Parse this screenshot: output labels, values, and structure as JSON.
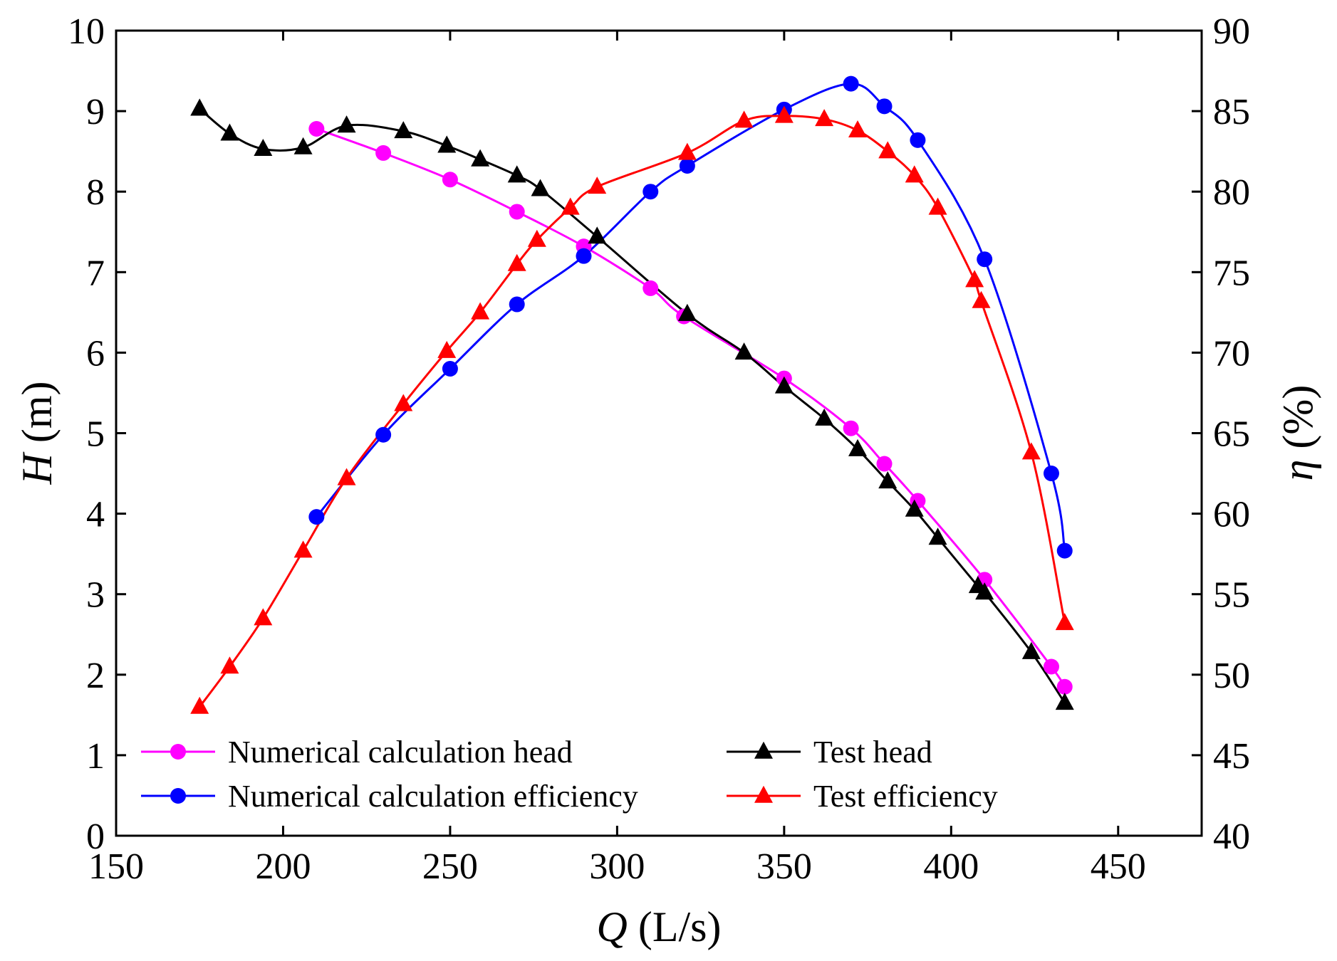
{
  "chart_data": {
    "type": "line",
    "xlabel": {
      "var": "Q",
      "unit": " (L/s)"
    },
    "ylabel_left": {
      "var": "H",
      "unit": " (m)"
    },
    "ylabel_right": {
      "var": "η",
      "unit": " (%)"
    },
    "xlim": [
      150,
      475
    ],
    "ylim_left": [
      0,
      10
    ],
    "ylim_right": [
      40,
      90
    ],
    "xticks": [
      150,
      200,
      250,
      300,
      350,
      400,
      450
    ],
    "yticks_left": [
      0,
      1,
      2,
      3,
      4,
      5,
      6,
      7,
      8,
      9,
      10
    ],
    "yticks_right": [
      40,
      45,
      50,
      55,
      60,
      65,
      70,
      75,
      80,
      85,
      90
    ],
    "grid": false,
    "legend_position": "bottom-left",
    "series": [
      {
        "name": "Numerical calculation head",
        "axis": "left",
        "color": "#ff00ff",
        "marker": "circle",
        "x": [
          210,
          230,
          250,
          270,
          290,
          310,
          320,
          350,
          370,
          380,
          390,
          410,
          430,
          434
        ],
        "y": [
          8.78,
          8.48,
          8.15,
          7.75,
          7.32,
          6.8,
          6.45,
          5.68,
          5.06,
          4.62,
          4.16,
          3.18,
          2.1,
          1.85
        ]
      },
      {
        "name": "Test head",
        "axis": "left",
        "color": "#000000",
        "marker": "triangle",
        "x": [
          175,
          184,
          194,
          206,
          219,
          236,
          249,
          259,
          270,
          277,
          294,
          321,
          338,
          350,
          362,
          372,
          381,
          389,
          396,
          408,
          410,
          424,
          434
        ],
        "y": [
          9.03,
          8.72,
          8.53,
          8.55,
          8.82,
          8.75,
          8.57,
          8.4,
          8.2,
          8.03,
          7.44,
          6.48,
          6.0,
          5.58,
          5.18,
          4.8,
          4.4,
          4.05,
          3.7,
          3.1,
          3.02,
          2.28,
          1.65
        ]
      },
      {
        "name": "Numerical calculation efficiency",
        "axis": "right",
        "color": "#0000ff",
        "marker": "circle",
        "x": [
          210,
          230,
          250,
          270,
          290,
          310,
          321,
          350,
          370,
          380,
          390,
          410,
          430,
          434
        ],
        "y": [
          59.8,
          64.9,
          69.0,
          73.0,
          76.0,
          80.0,
          81.6,
          85.1,
          86.7,
          85.3,
          83.2,
          75.8,
          62.5,
          57.7
        ]
      },
      {
        "name": "Test efficiency",
        "axis": "right",
        "color": "#ff0000",
        "marker": "triangle",
        "x": [
          175,
          184,
          194,
          206,
          219,
          236,
          249,
          259,
          270,
          276,
          286,
          294,
          321,
          338,
          350,
          362,
          372,
          381,
          389,
          396,
          407,
          409,
          424,
          434
        ],
        "y": [
          48.0,
          50.5,
          53.5,
          57.7,
          62.2,
          66.8,
          70.1,
          72.5,
          75.5,
          77.0,
          79.0,
          80.3,
          82.4,
          84.4,
          84.7,
          84.5,
          83.8,
          82.5,
          81.0,
          79.0,
          74.5,
          73.2,
          63.8,
          53.2
        ]
      }
    ]
  }
}
